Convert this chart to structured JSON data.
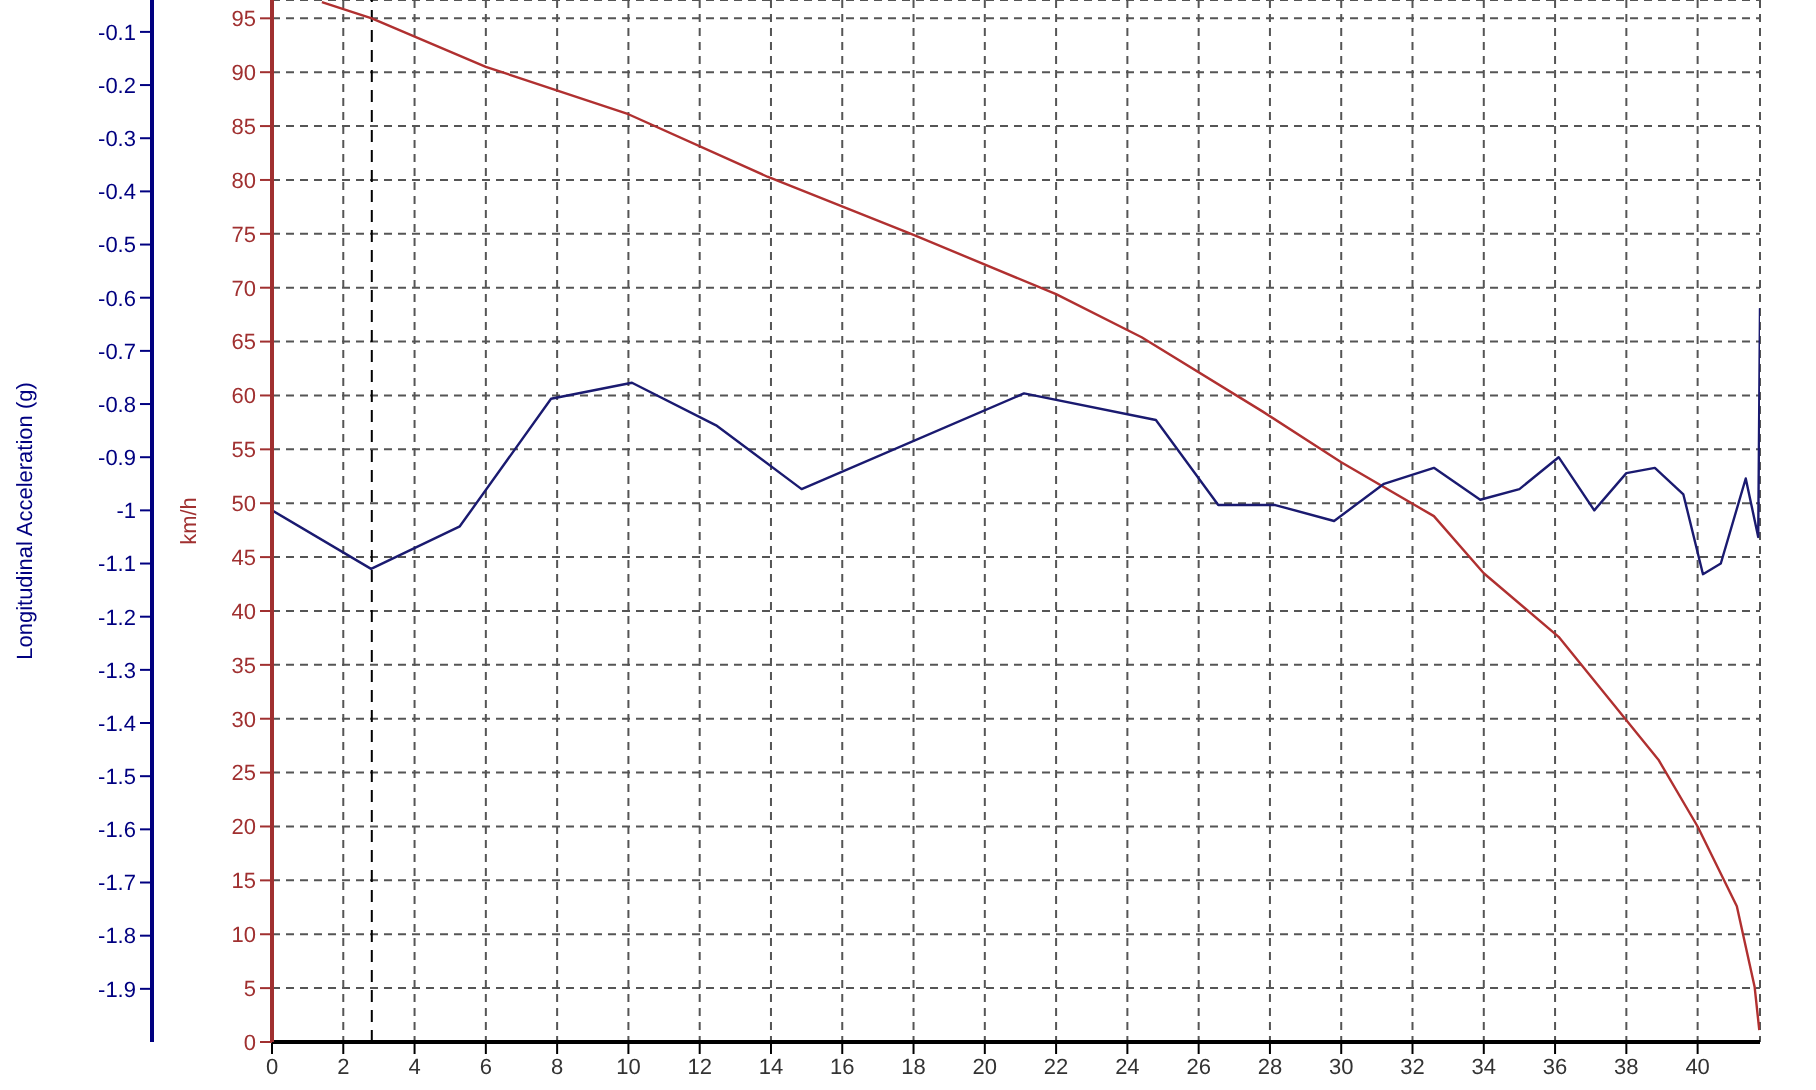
{
  "chart_data": {
    "type": "line",
    "ylabel": "km/h",
    "y2label": "Longitudinal Acceleration (g)",
    "xlim": [
      0,
      41.75
    ],
    "xticks": [
      0,
      2,
      4,
      6,
      8,
      10,
      12,
      14,
      16,
      18,
      20,
      22,
      24,
      26,
      28,
      30,
      32,
      34,
      36,
      38,
      40
    ],
    "ylim": [
      0,
      96.7
    ],
    "yticks": [
      0,
      5,
      10,
      15,
      20,
      25,
      30,
      35,
      40,
      45,
      50,
      55,
      60,
      65,
      70,
      75,
      80,
      85,
      90,
      95
    ],
    "y2lim": [
      -2.0,
      -0.04
    ],
    "y2ticks": [
      -1.9,
      -1.8,
      -1.7,
      -1.6,
      -1.5,
      -1.4,
      -1.3,
      -1.2,
      -1.1,
      -1,
      -0.9,
      -0.8,
      -0.7,
      -0.6,
      -0.5,
      -0.4,
      -0.3,
      -0.2,
      -0.1
    ],
    "grid": true,
    "marker": "none",
    "line_style": "solid",
    "series": [
      {
        "color": "#b03030",
        "x": [
          1.4,
          2.8,
          6.0,
          10.0,
          13.9,
          18.0,
          22.0,
          24.4,
          27.8,
          30.0,
          32.6,
          34.0,
          36.1,
          38.9,
          40.0,
          41.1,
          41.6,
          41.73
        ],
        "values": [
          96.5,
          95,
          90.5,
          86.1,
          80.3,
          74.9,
          69.4,
          65.4,
          58.5,
          53.8,
          48.8,
          43.5,
          37.6,
          26.2,
          20.0,
          12.6,
          5.1,
          1.1
        ]
      },
      {
        "color": "#1a1a70",
        "axis": "y2",
        "x": [
          0,
          2.78,
          5.27,
          7.83,
          10.1,
          12.46,
          14.86,
          21.1,
          24.8,
          26.55,
          27.2,
          28.15,
          29.8,
          31.2,
          32.6,
          33.9,
          35.0,
          36.1,
          37.1,
          38.0,
          38.8,
          39.6,
          40.15,
          40.65,
          41.35,
          41.7,
          41.75
        ],
        "values": [
          -1.0,
          -1.11,
          -1.03,
          -0.79,
          -0.76,
          -0.84,
          -0.96,
          -0.78,
          -0.83,
          -0.99,
          -0.99,
          -0.99,
          -1.02,
          -0.95,
          -0.92,
          -0.98,
          -0.96,
          -0.9,
          -1.0,
          -0.93,
          -0.92,
          -0.97,
          -1.12,
          -1.1,
          -0.94,
          -1.05,
          -0.62
        ]
      }
    ],
    "ref_lines": [
      {
        "axis": "x",
        "value": 2.8,
        "color": "#000000",
        "line_style": "dashed"
      }
    ]
  }
}
